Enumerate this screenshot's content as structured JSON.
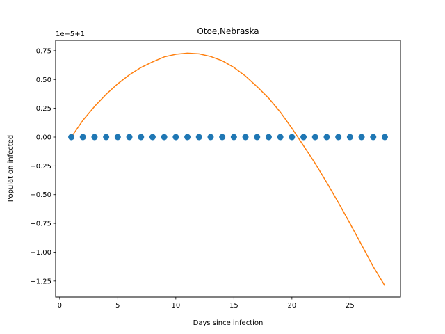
{
  "chart_data": {
    "type": "scatter",
    "title": "Otoe,Nebraska",
    "xlabel": "Days since infection",
    "ylabel": "Population infected",
    "offset_label": "1e−5+1",
    "xlim": [
      -0.35,
      29.35
    ],
    "ylim": [
      -1.39,
      0.84
    ],
    "x_ticks": [
      {
        "value": 0,
        "label": "0"
      },
      {
        "value": 5,
        "label": "5"
      },
      {
        "value": 10,
        "label": "10"
      },
      {
        "value": 15,
        "label": "15"
      },
      {
        "value": 20,
        "label": "20"
      },
      {
        "value": 25,
        "label": "25"
      }
    ],
    "y_ticks": [
      {
        "value": 0.75,
        "label": "0.75"
      },
      {
        "value": 0.5,
        "label": "0.50"
      },
      {
        "value": 0.25,
        "label": "0.25"
      },
      {
        "value": 0.0,
        "label": "0.00"
      },
      {
        "value": -0.25,
        "label": "−0.25"
      },
      {
        "value": -0.5,
        "label": "−0.50"
      },
      {
        "value": -0.75,
        "label": "−0.75"
      },
      {
        "value": -1.0,
        "label": "−1.00"
      },
      {
        "value": -1.25,
        "label": "−1.25"
      }
    ],
    "grid": false,
    "series": [
      {
        "type": "scatter",
        "color": "#1f77b4",
        "x": [
          1,
          2,
          3,
          4,
          5,
          6,
          7,
          8,
          9,
          10,
          11,
          12,
          13,
          14,
          15,
          16,
          17,
          18,
          19,
          20,
          21,
          22,
          23,
          24,
          25,
          26,
          27,
          28
        ],
        "y": [
          0,
          0,
          0,
          0,
          0,
          0,
          0,
          0,
          0,
          0,
          0,
          0,
          0,
          0,
          0,
          0,
          0,
          0,
          0,
          0,
          0,
          0,
          0,
          0,
          0,
          0,
          0,
          0
        ]
      },
      {
        "type": "line",
        "color": "#ff7f0e",
        "x": [
          1,
          2,
          3,
          4,
          5,
          6,
          7,
          8,
          9,
          10,
          11,
          12,
          13,
          14,
          15,
          16,
          17,
          18,
          19,
          20,
          21,
          22,
          23,
          24,
          25,
          26,
          27,
          28
        ],
        "y": [
          0.0,
          0.146,
          0.266,
          0.372,
          0.463,
          0.541,
          0.604,
          0.653,
          0.696,
          0.719,
          0.729,
          0.723,
          0.7,
          0.663,
          0.605,
          0.53,
          0.438,
          0.338,
          0.217,
          0.077,
          -0.075,
          -0.228,
          -0.395,
          -0.569,
          -0.75,
          -0.937,
          -1.125,
          -1.29
        ]
      }
    ]
  }
}
